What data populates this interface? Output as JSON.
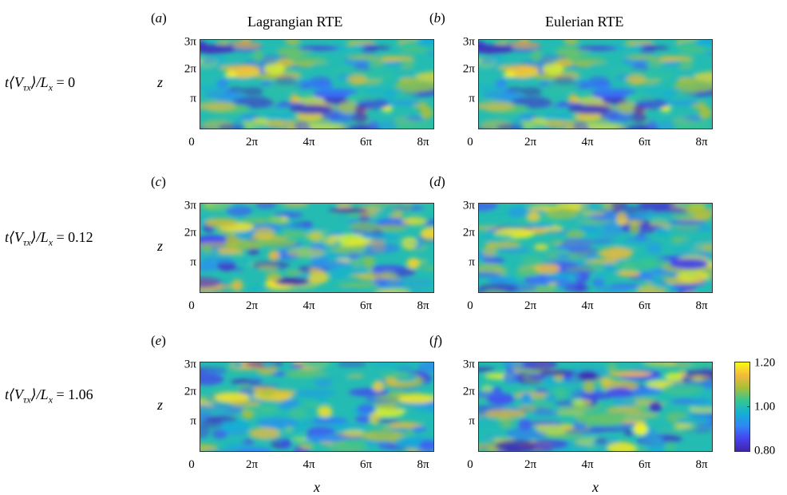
{
  "column_titles": [
    "Lagrangian RTE",
    "Eulerian RTE"
  ],
  "row_labels": [
    {
      "prefix": "t⟨V",
      "sub": "τx",
      "suffix": "⟩/L",
      "sub2": "x",
      "value": " = 0"
    },
    {
      "prefix": "t⟨V",
      "sub": "τx",
      "suffix": "⟩/L",
      "sub2": "x",
      "value": " = 0.12"
    },
    {
      "prefix": "t⟨V",
      "sub": "τx",
      "suffix": "⟩/L",
      "sub2": "x",
      "value": " = 1.06"
    }
  ],
  "chart_data": [
    {
      "type": "heatmap",
      "panel": "(a)",
      "letter": "a",
      "column": "Lagrangian RTE",
      "time": 0,
      "xlabel": "",
      "ylabel": "z",
      "xlim": [
        0,
        25.13
      ],
      "ylim": [
        0,
        9.42
      ],
      "xticks": [
        "0",
        "2π",
        "4π",
        "6π",
        "8π"
      ],
      "yticks": [
        "π",
        "2π",
        "3π"
      ],
      "clim": [
        0.8,
        1.2
      ],
      "seed": 11
    },
    {
      "type": "heatmap",
      "panel": "(b)",
      "letter": "b",
      "column": "Eulerian RTE",
      "time": 0,
      "xlabel": "",
      "ylabel": "",
      "xlim": [
        0,
        25.13
      ],
      "ylim": [
        0,
        9.42
      ],
      "xticks": [
        "0",
        "2π",
        "4π",
        "6π",
        "8π"
      ],
      "yticks": [
        "π",
        "2π",
        "3π"
      ],
      "clim": [
        0.8,
        1.2
      ],
      "seed": 11
    },
    {
      "type": "heatmap",
      "panel": "(c)",
      "letter": "c",
      "column": "Lagrangian RTE",
      "time": 0.12,
      "xlabel": "",
      "ylabel": "z",
      "xlim": [
        0,
        25.13
      ],
      "ylim": [
        0,
        9.42
      ],
      "xticks": [
        "0",
        "2π",
        "4π",
        "6π",
        "8π"
      ],
      "yticks": [
        "π",
        "2π",
        "3π"
      ],
      "clim": [
        0.8,
        1.2
      ],
      "seed": 23
    },
    {
      "type": "heatmap",
      "panel": "(d)",
      "letter": "d",
      "column": "Eulerian RTE",
      "time": 0.12,
      "xlabel": "",
      "ylabel": "",
      "xlim": [
        0,
        25.13
      ],
      "ylim": [
        0,
        9.42
      ],
      "xticks": [
        "0",
        "2π",
        "4π",
        "6π",
        "8π"
      ],
      "yticks": [
        "π",
        "2π",
        "3π"
      ],
      "clim": [
        0.8,
        1.2
      ],
      "seed": 37
    },
    {
      "type": "heatmap",
      "panel": "(e)",
      "letter": "e",
      "column": "Lagrangian RTE",
      "time": 1.06,
      "xlabel": "x",
      "ylabel": "z",
      "xlim": [
        0,
        25.13
      ],
      "ylim": [
        0,
        9.42
      ],
      "xticks": [
        "0",
        "2π",
        "4π",
        "6π",
        "8π"
      ],
      "yticks": [
        "π",
        "2π",
        "3π"
      ],
      "clim": [
        0.8,
        1.2
      ],
      "seed": 51
    },
    {
      "type": "heatmap",
      "panel": "(f)",
      "letter": "f",
      "column": "Eulerian RTE",
      "time": 1.06,
      "xlabel": "x",
      "ylabel": "",
      "xlim": [
        0,
        25.13
      ],
      "ylim": [
        0,
        9.42
      ],
      "xticks": [
        "0",
        "2π",
        "4π",
        "6π",
        "8π"
      ],
      "yticks": [
        "π",
        "2π",
        "3π"
      ],
      "clim": [
        0.8,
        1.2
      ],
      "seed": 67
    }
  ],
  "colorbar": {
    "ticks": [
      "1.20",
      "1.00",
      "0.80"
    ],
    "values": [
      1.2,
      1.0,
      0.8
    ],
    "colormap": "parula"
  }
}
